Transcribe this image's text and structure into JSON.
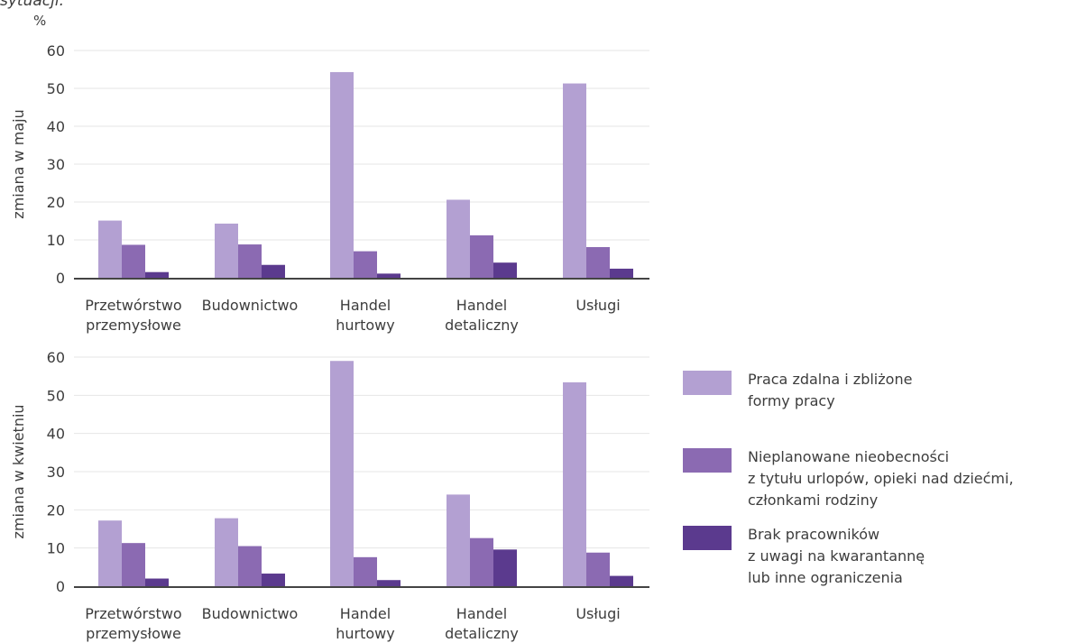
{
  "caption": "sytuacji.",
  "unit": "%",
  "colors": {
    "praca": "#b3a0d2",
    "nieobecnosci": "#8b6ab2",
    "brak": "#5b3a8e",
    "axis": "#444444",
    "grid": "#e6e6e6"
  },
  "chart_data": [
    {
      "type": "bar",
      "ylabel": "zmiana w maju",
      "ylim": [
        0,
        60
      ],
      "yticks": [
        "0",
        "10",
        "20",
        "30",
        "40",
        "50",
        "60"
      ],
      "categories": [
        "Przetwórstwo\nprzemysłowe",
        "Budownictwo",
        "Handel\nhurtowy",
        "Handel\ndetaliczny",
        "Usługi"
      ],
      "series": [
        {
          "name": "Praca zdalna i zbliżone formy pracy",
          "values": [
            15.1,
            14.3,
            54.3,
            20.6,
            51.3
          ]
        },
        {
          "name": "Nieplanowane nieobecności z tytułu urlopów, opieki nad dziećmi, członkami rodziny",
          "values": [
            8.7,
            8.8,
            7.0,
            11.2,
            8.1
          ]
        },
        {
          "name": "Brak pracowników z uwagi na kwarantannę lub inne ograniczenia",
          "values": [
            1.5,
            3.4,
            1.1,
            4.0,
            2.4
          ]
        }
      ]
    },
    {
      "type": "bar",
      "ylabel": "zmiana w kwietniu",
      "ylim": [
        0,
        60
      ],
      "yticks": [
        "0",
        "10",
        "20",
        "30",
        "40",
        "50",
        "60"
      ],
      "categories": [
        "Przetwórstwo\nprzemysłowe",
        "Budownictwo",
        "Handel\nhurtowy",
        "Handel\ndetaliczny",
        "Usługi"
      ],
      "series": [
        {
          "name": "Praca zdalna i zbliżone formy pracy",
          "values": [
            17.2,
            17.8,
            59.0,
            24.0,
            53.4
          ]
        },
        {
          "name": "Nieplanowane nieobecności z tytułu urlopów, opieki nad dziećmi, członkami rodziny",
          "values": [
            11.3,
            10.5,
            7.6,
            12.6,
            8.8
          ]
        },
        {
          "name": "Brak pracowników z uwagi na kwarantannę lub inne ograniczenia",
          "values": [
            2.0,
            3.3,
            1.6,
            9.6,
            2.7
          ]
        }
      ]
    }
  ],
  "legend": [
    {
      "label": "Praca zdalna i zbliżone\nformy pracy",
      "color": "#b3a0d2"
    },
    {
      "label": "Nieplanowane nieobecności\nz tytułu urlopów, opieki nad dziećmi,\nczłonkami rodziny",
      "color": "#8b6ab2"
    },
    {
      "label": "Brak pracowników\nz uwagi na kwarantannę\nlub inne ograniczenia",
      "color": "#5b3a8e"
    }
  ]
}
